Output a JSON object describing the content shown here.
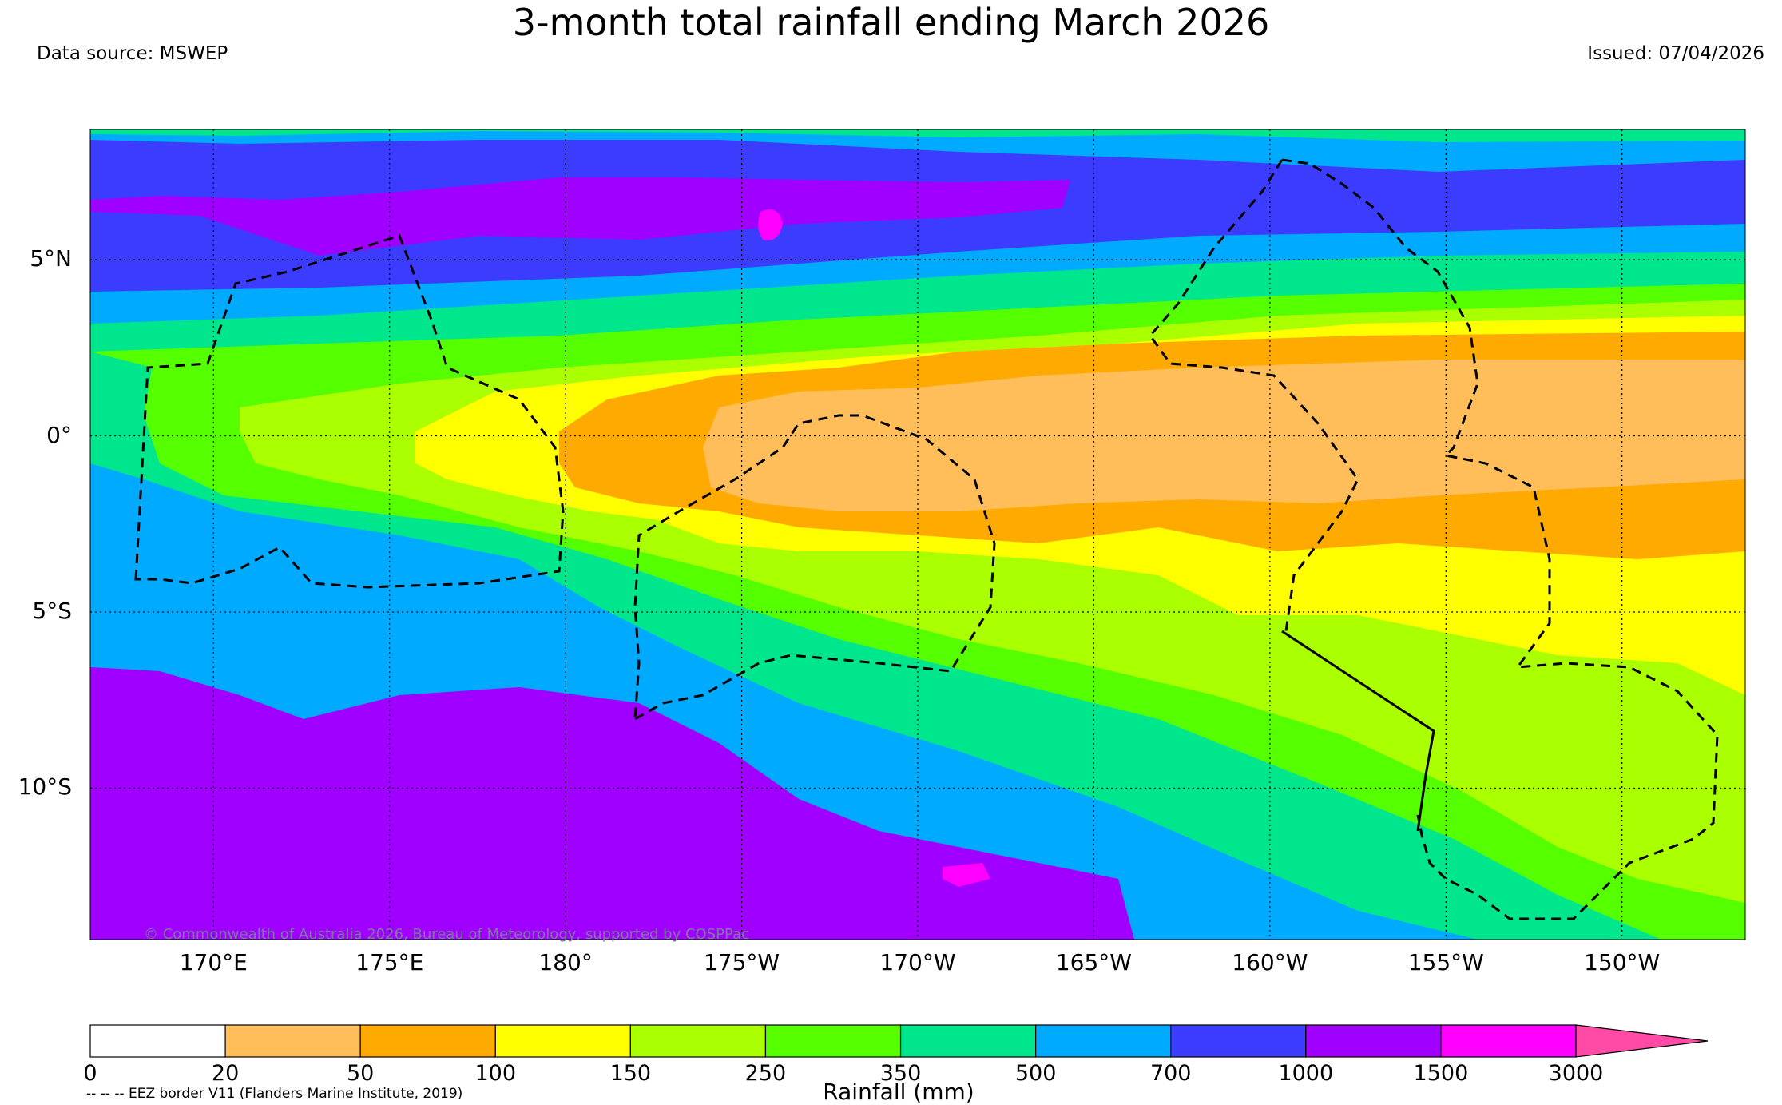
{
  "header": {
    "title": "3-month total rainfall ending March 2026",
    "data_source": "Data source: MSWEP",
    "issued": "Issued: 07/04/2026"
  },
  "map": {
    "lon_range": [
      166.5,
      213.5
    ],
    "lat_range": [
      -14.3,
      8.7
    ],
    "lat_labels": [
      {
        "lat": 5,
        "label": "5°N"
      },
      {
        "lat": 0,
        "label": "0°"
      },
      {
        "lat": -5,
        "label": "5°S"
      },
      {
        "lat": -10,
        "label": "10°S"
      }
    ],
    "lon_labels": [
      {
        "lon": 170,
        "label": "170°E"
      },
      {
        "lon": 175,
        "label": "175°E"
      },
      {
        "lon": 180,
        "label": "180°"
      },
      {
        "lon": 185,
        "label": "175°W"
      },
      {
        "lon": 190,
        "label": "170°W"
      },
      {
        "lon": 195,
        "label": "165°W"
      },
      {
        "lon": 200,
        "label": "160°W"
      },
      {
        "lon": 205,
        "label": "155°W"
      },
      {
        "lon": 210,
        "label": "150°W"
      }
    ],
    "copyright": "© Commonwealth of Australia 2026, Bureau of Meteorology, supported by COSPPac"
  },
  "colorbar": {
    "levels": [
      "0",
      "20",
      "50",
      "100",
      "150",
      "250",
      "350",
      "500",
      "700",
      "1000",
      "1500",
      "3000"
    ],
    "colors": [
      "#ffffff",
      "#ffbe5a",
      "#ffaa00",
      "#ffff00",
      "#aaff00",
      "#55ff00",
      "#00e68c",
      "#00aaff",
      "#3c3cff",
      "#a000ff",
      "#ff00ff"
    ],
    "extend_color": "#ff4ba6",
    "units_label": "Rainfall (mm)",
    "eez_note": "-- -- -- EEZ border V11 (Flanders Marine Institute, 2019)"
  }
}
